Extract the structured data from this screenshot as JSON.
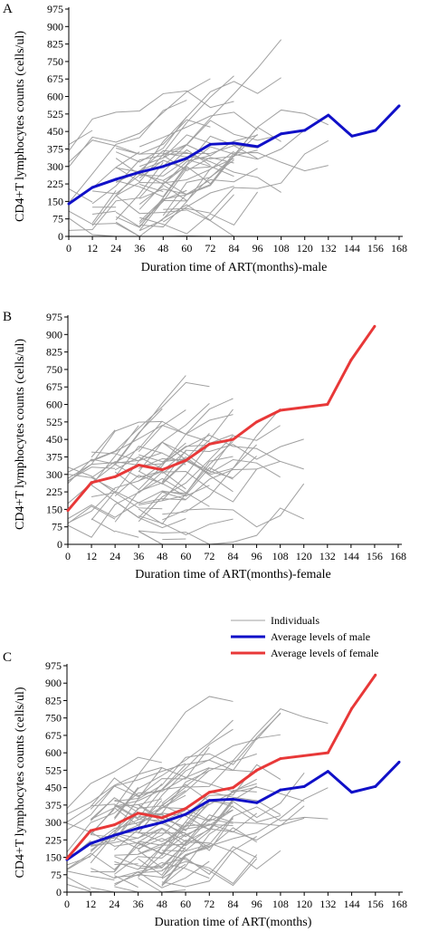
{
  "chart_data": [
    {
      "type": "line",
      "panel_label": "A",
      "xlabel": "Duration time of ART(months)-male",
      "ylabel": "CD4+T lymphocytes counts (cells/ul)",
      "x_ticks": [
        "0",
        "12",
        "24",
        "36",
        "48",
        "60",
        "72",
        "84",
        "96",
        "108",
        "120",
        "132",
        "144",
        "156",
        "168"
      ],
      "y_ticks": [
        "0",
        "75",
        "150",
        "225",
        "300",
        "375",
        "450",
        "525",
        "600",
        "675",
        "750",
        "825",
        "900",
        "975"
      ],
      "xlim": [
        0,
        168
      ],
      "ylim": [
        0,
        975
      ],
      "series": [
        {
          "name": "Average levels of male",
          "color": "#1010c8",
          "x": [
            0,
            12,
            24,
            36,
            48,
            60,
            72,
            84,
            96,
            108,
            120,
            132,
            144,
            156,
            168
          ],
          "y": [
            140,
            210,
            245,
            275,
            300,
            335,
            395,
            400,
            385,
            440,
            455,
            520,
            430,
            455,
            560
          ]
        }
      ]
    },
    {
      "type": "line",
      "panel_label": "B",
      "xlabel": "Duration time of ART(months)-female",
      "ylabel": "CD4+T lymphocytes counts (cells/ul)",
      "x_ticks": [
        "0",
        "12",
        "24",
        "36",
        "48",
        "60",
        "72",
        "84",
        "96",
        "108",
        "120",
        "132",
        "144",
        "156",
        "168"
      ],
      "y_ticks": [
        "0",
        "75",
        "150",
        "225",
        "300",
        "375",
        "450",
        "525",
        "600",
        "675",
        "750",
        "825",
        "900",
        "975"
      ],
      "xlim": [
        0,
        168
      ],
      "ylim": [
        0,
        975
      ],
      "series": [
        {
          "name": "Average levels of female",
          "color": "#e83838",
          "x": [
            0,
            12,
            24,
            36,
            48,
            60,
            72,
            84,
            96,
            108,
            132,
            144,
            156
          ],
          "y": [
            145,
            265,
            290,
            340,
            320,
            360,
            430,
            450,
            525,
            575,
            600,
            790,
            935
          ]
        }
      ]
    },
    {
      "type": "line",
      "panel_label": "C",
      "xlabel": "Duration time of ART(months)",
      "ylabel": "CD4+T lymphocytes counts (cells/ul)",
      "x_ticks": [
        "0",
        "12",
        "24",
        "36",
        "48",
        "60",
        "72",
        "84",
        "96",
        "108",
        "120",
        "132",
        "144",
        "156",
        "168"
      ],
      "y_ticks": [
        "0",
        "75",
        "150",
        "225",
        "300",
        "375",
        "450",
        "525",
        "600",
        "675",
        "750",
        "825",
        "900",
        "975"
      ],
      "xlim": [
        0,
        168
      ],
      "ylim": [
        0,
        975
      ],
      "legend": [
        {
          "label": "Individuals",
          "color": "#a0a0a0"
        },
        {
          "label": "Average levels of male",
          "color": "#1010c8"
        },
        {
          "label": "Average levels of female",
          "color": "#e83838"
        }
      ],
      "series": [
        {
          "name": "Average levels of male",
          "color": "#1010c8",
          "x": [
            0,
            12,
            24,
            36,
            48,
            60,
            72,
            84,
            96,
            108,
            120,
            132,
            144,
            156,
            168
          ],
          "y": [
            140,
            210,
            245,
            275,
            300,
            335,
            395,
            400,
            385,
            440,
            455,
            520,
            430,
            455,
            560
          ]
        },
        {
          "name": "Average levels of female",
          "color": "#e83838",
          "x": [
            0,
            12,
            24,
            36,
            48,
            60,
            72,
            84,
            96,
            108,
            132,
            144,
            156
          ],
          "y": [
            145,
            265,
            290,
            340,
            320,
            360,
            430,
            450,
            525,
            575,
            600,
            790,
            935
          ]
        }
      ]
    }
  ],
  "colors": {
    "individuals": "#a0a0a0",
    "male": "#1010c8",
    "female": "#e83838",
    "axis": "#000000"
  }
}
